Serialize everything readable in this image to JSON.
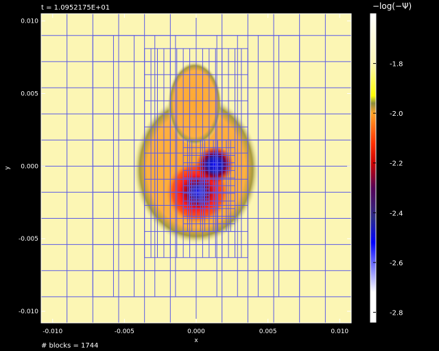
{
  "header": {
    "time_label": "t = 1.0952175E+01"
  },
  "footer": {
    "blocks_label": "# blocks = 1744"
  },
  "colors": {
    "background": "#000000",
    "grid_lines": "#5a5ae6"
  },
  "chart_data": {
    "type": "heatmap",
    "xlabel": "x",
    "ylabel": "y",
    "xlim": [
      -0.0108,
      0.0108
    ],
    "ylim": [
      -0.0108,
      0.0105
    ],
    "x_ticks": [
      -0.01,
      -0.005,
      0.0,
      0.005,
      0.01
    ],
    "x_tick_labels": [
      "-0.010",
      "-0.005",
      "0.000",
      "0.005",
      "0.010"
    ],
    "y_ticks": [
      0.01,
      0.005,
      0.0,
      -0.005,
      -0.01
    ],
    "y_tick_labels": [
      "0.010",
      "0.005",
      "0.000",
      "-0.005",
      "-0.010"
    ],
    "colorbar": {
      "label": "−log(−Ψ)",
      "range": [
        -1.6,
        -2.84
      ],
      "ticks": [
        -1.8,
        -2.0,
        -2.2,
        -2.4,
        -2.6,
        -2.8
      ],
      "tick_labels": [
        "-1.8",
        "-2.0",
        "-2.2",
        "-2.4",
        "-2.6",
        "-2.8"
      ],
      "stops": [
        {
          "value": -1.6,
          "color": "#ffffff"
        },
        {
          "value": -1.8,
          "color": "#fcf6b4"
        },
        {
          "value": -1.93,
          "color": "#ffff00"
        },
        {
          "value": -1.96,
          "color": "#8c8c3c"
        },
        {
          "value": -2.0,
          "color": "#ffa326"
        },
        {
          "value": -2.12,
          "color": "#ff3000"
        },
        {
          "value": -2.2,
          "color": "#cc0000"
        },
        {
          "value": -2.3,
          "color": "#550055"
        },
        {
          "value": -2.42,
          "color": "#2a2a88"
        },
        {
          "value": -2.52,
          "color": "#0000ff"
        },
        {
          "value": -2.72,
          "color": "#ffffff"
        },
        {
          "value": -2.84,
          "color": "#ffffff"
        }
      ]
    },
    "background_value": -1.82,
    "features": [
      {
        "kind": "bulk",
        "cx": 0.0,
        "cy": -0.0002,
        "rx": 0.0039,
        "ry": 0.0066,
        "value": -2.02
      },
      {
        "kind": "upper-lobe",
        "cx": -0.0001,
        "cy": 0.0043,
        "rx": 0.0014,
        "ry": 0.0026,
        "value": -2.02
      },
      {
        "kind": "minimum",
        "cx": 0.0001,
        "cy": -0.0018,
        "r": 0.0022,
        "value": -2.62
      },
      {
        "kind": "minimum",
        "cx": 0.0013,
        "cy": 0.0001,
        "r": 0.0013,
        "value": -2.5
      }
    ]
  }
}
